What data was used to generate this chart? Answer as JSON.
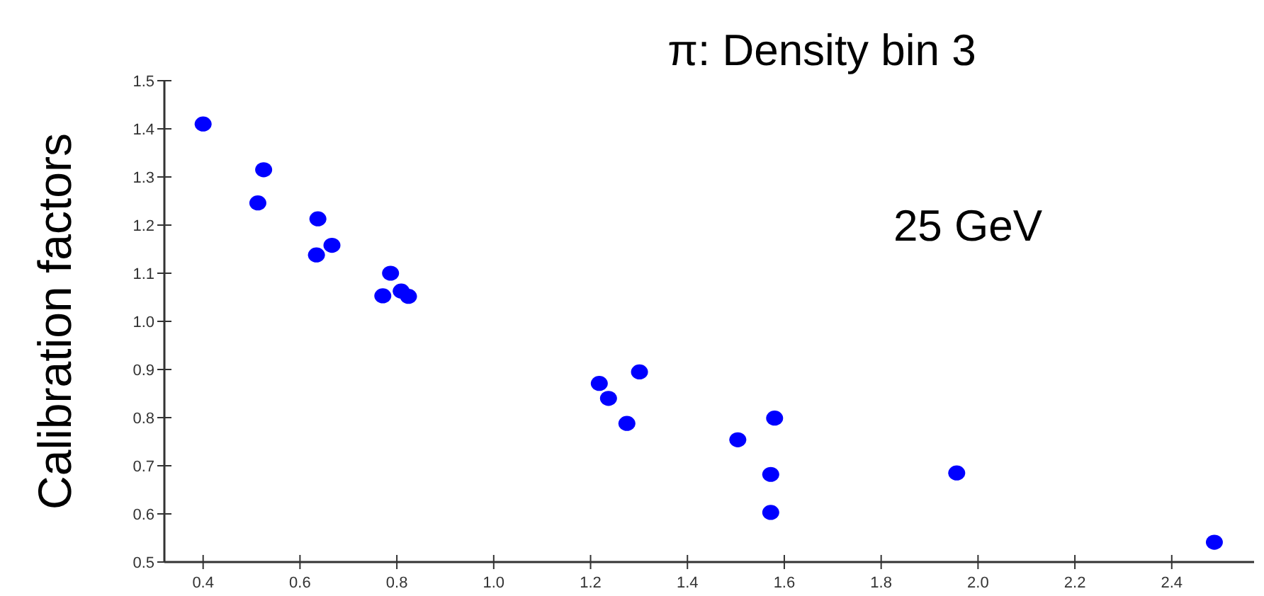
{
  "chart_data": {
    "type": "scatter",
    "title": "π: Density bin 3",
    "ylabel": "Calibration factors",
    "annotations": [
      "25 GeV"
    ],
    "x": [
      0.4,
      0.525,
      0.513,
      0.637,
      0.634,
      0.666,
      0.787,
      0.771,
      0.809,
      0.824,
      1.218,
      1.237,
      1.275,
      1.301,
      1.58,
      1.504,
      1.572,
      1.572,
      1.956,
      2.488
    ],
    "series": [
      {
        "color": "#0000ff",
        "values": [
          1.41,
          1.315,
          1.246,
          1.213,
          1.138,
          1.158,
          1.1,
          1.053,
          1.063,
          1.052,
          0.871,
          0.84,
          0.788,
          0.895,
          0.799,
          0.754,
          0.682,
          0.603,
          0.685,
          0.541
        ]
      }
    ],
    "xlim": [
      0.32,
      2.57
    ],
    "xticks": [
      0.4,
      0.6,
      0.8,
      {
        "value": 1,
        "label": "1.0"
      },
      1.2,
      1.4,
      1.6,
      1.8,
      {
        "value": 2,
        "label": "2.0"
      },
      2.2,
      2.4
    ],
    "ylim": [
      0.5,
      1.5
    ],
    "yticks": [
      0.5,
      0.6,
      0.7,
      0.8,
      0.9,
      {
        "value": 1,
        "label": "1.0"
      },
      1.1,
      1.2,
      1.3,
      1.4,
      1.5
    ],
    "marker": "circle"
  }
}
